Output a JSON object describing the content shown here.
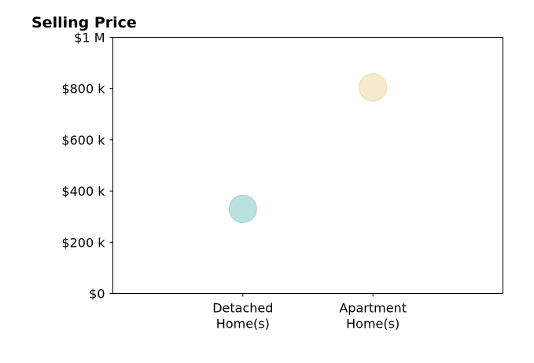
{
  "chart_data": {
    "type": "scatter",
    "title": "Selling Price",
    "xlabel": "",
    "ylabel": "",
    "categories": [
      [
        "Detached",
        "Home(s)"
      ],
      [
        "Apartment",
        "Home(s)"
      ]
    ],
    "xlim": [
      -1,
      2
    ],
    "ylim": [
      0,
      1000000
    ],
    "yticks": [
      {
        "value": 0,
        "label": "$0"
      },
      {
        "value": 200000,
        "label": "$200 k"
      },
      {
        "value": 400000,
        "label": "$400 k"
      },
      {
        "value": 600000,
        "label": "$600 k"
      },
      {
        "value": 800000,
        "label": "$800 k"
      },
      {
        "value": 1000000,
        "label": "$1 M"
      }
    ],
    "points": [
      {
        "category": "Detached Home(s)",
        "x": 0,
        "y": 330000,
        "color": "#b3ded9"
      },
      {
        "category": "Apartment Home(s)",
        "x": 1,
        "y": 805000,
        "color": "#f7e8c9"
      }
    ],
    "grid": false,
    "legend": "none"
  }
}
